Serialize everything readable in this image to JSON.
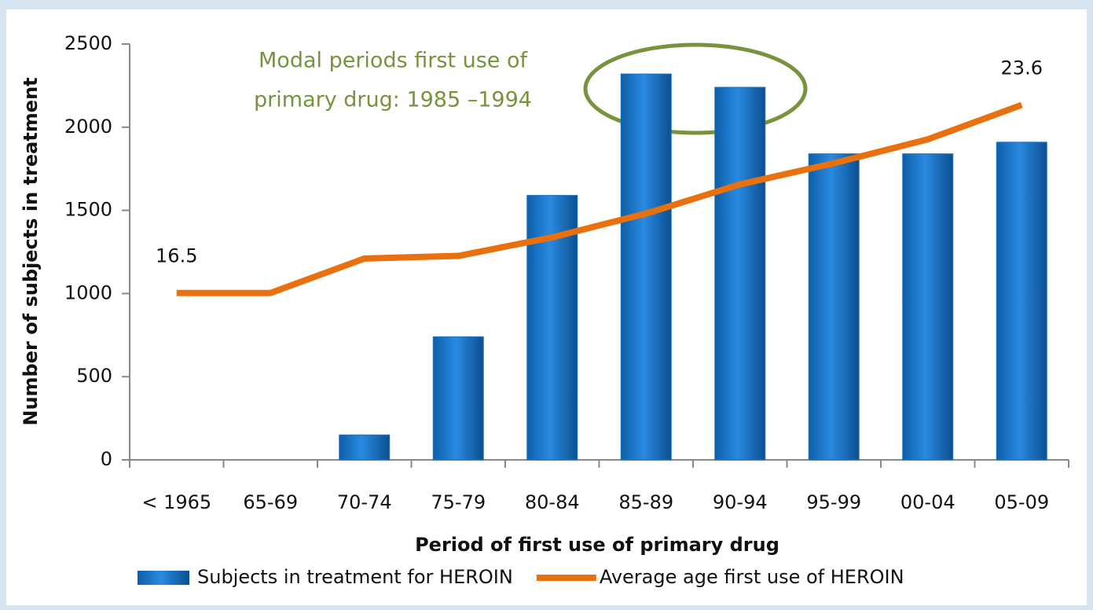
{
  "chart_data": {
    "type": "bar",
    "x_label": "Period of first use of primary drug",
    "y_label": "Number of subjects in treatment",
    "annotation": [
      "Modal periods first use of",
      "primary drug: 1985 –1994"
    ],
    "categories": [
      "< 1965",
      "65-69",
      "70-74",
      "75-79",
      "80-84",
      "85-89",
      "90-94",
      "95-99",
      "00-04",
      "05-09"
    ],
    "series": [
      {
        "name": "Subjects in treatment  for HEROIN",
        "type": "bar",
        "color": "#1b75c4",
        "values": [
          0,
          0,
          150,
          740,
          1590,
          2320,
          2240,
          1840,
          1840,
          1910
        ]
      },
      {
        "name": "Average age first use of HEROIN",
        "type": "line",
        "color": "#e8700f",
        "axis": "y2",
        "values": [
          16.5,
          16.5,
          17.8,
          17.9,
          18.6,
          19.5,
          20.6,
          21.4,
          22.3,
          23.6
        ],
        "value_labels": [
          "16.5",
          null,
          null,
          null,
          null,
          null,
          null,
          null,
          null,
          "23.6"
        ]
      }
    ],
    "ylim": [
      0,
      2500
    ],
    "yticks": [
      0,
      500,
      1000,
      1500,
      2000,
      2500
    ],
    "y2lim": [
      10.2,
      25.9
    ],
    "legend": "bottom",
    "grid": false
  }
}
